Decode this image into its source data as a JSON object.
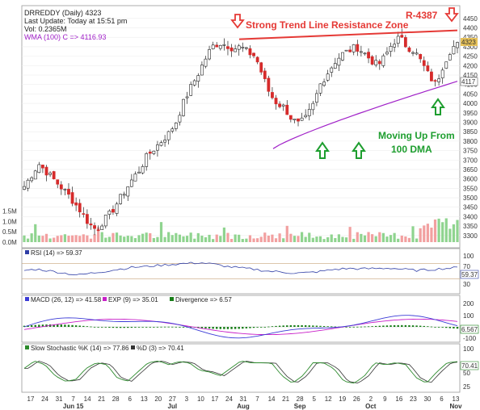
{
  "header": {
    "symbol_line": "DRREDDY (Daily) 4323",
    "update_line": "Last Update: Today at 15:51 pm",
    "vol_line": "Vol: 0.2365M",
    "wma_line": "WMA (100) C => 4116.93"
  },
  "annotations": {
    "resistance_title": "Strong Trend Line Resistance Zone",
    "resistance_level": "R-4387",
    "support_line1": "Moving Up From",
    "support_line2": "100 DMA"
  },
  "price_labels": {
    "last": "4323",
    "wma": "4117"
  },
  "panels": {
    "rsi": {
      "legend": "RSI (14) => 59.37",
      "value_tag": "59.37",
      "levels": [
        "100",
        "70",
        "30"
      ]
    },
    "macd": {
      "legend_macd": "MACD (26, 12) => 41.58",
      "legend_exp": "EXP (9) => 35.01",
      "legend_div": "Divergence => 6.57",
      "value_tag": "6.567",
      "levels": [
        "200",
        "100",
        "-100"
      ]
    },
    "stoch": {
      "legend_k": "Slow Stochastic %K (14) => 77.86",
      "legend_d": "%D (3) => 70.41",
      "value_tag": "70.41",
      "levels": [
        "100",
        "50",
        "25"
      ]
    }
  },
  "x_axis": {
    "ticks": [
      "17",
      "24",
      "31",
      "7",
      "14",
      "21",
      "28",
      "6",
      "13",
      "20",
      "27",
      "3",
      "10",
      "17",
      "24",
      "31",
      "7",
      "14",
      "21",
      "28",
      "5",
      "12",
      "19",
      "26",
      "2",
      "9",
      "16",
      "23",
      "30",
      "6",
      "13"
    ],
    "months": [
      "Jun 15",
      "Jul",
      "Aug",
      "Sep",
      "Oct",
      "Nov"
    ]
  },
  "colors": {
    "up": "#1e9e2f",
    "down": "#d62b2b",
    "wma": "#a020c8",
    "resistance": "#e53935",
    "macd": "#3b3bd6",
    "exp": "#c81fc8",
    "divergence": "#177e17",
    "rsi": "#2f3ea6",
    "stoch_k": "#2c8a2c",
    "stoch_d": "#333333",
    "volume": "#8fd48f"
  },
  "icons": {
    "down_arrows": "red-outline-down-arrow-icon",
    "up_arrows": "green-outline-up-arrow-icon"
  },
  "chart_data": {
    "type": "candlestick",
    "y_ticks": [
      3300,
      3350,
      3400,
      3450,
      3500,
      3550,
      3600,
      3650,
      3700,
      3750,
      3800,
      3850,
      3900,
      3950,
      4000,
      4050,
      4100,
      4150,
      4200,
      4250,
      4300,
      4350,
      4400,
      4450
    ],
    "ylim": [
      3265,
      4475
    ],
    "volume_ticks": [
      "0.0M",
      "0.5M",
      "1.0M",
      "1.5M"
    ],
    "volume_ylim": [
      0,
      1.8
    ],
    "resistance_line": {
      "from": [
        "Aug 6",
        4340
      ],
      "to": [
        "Nov 13",
        4387
      ]
    },
    "wma_start_value": 3760,
    "wma_end_value": 4117,
    "last_close": 4323,
    "ohlc_anchor_closes": [
      3560,
      3620,
      3680,
      3640,
      3600,
      3560,
      3520,
      3470,
      3420,
      3360,
      3330,
      3380,
      3420,
      3480,
      3540,
      3600,
      3650,
      3720,
      3760,
      3800,
      3840,
      3900,
      4000,
      4080,
      4150,
      4230,
      4300,
      4320,
      4310,
      4290,
      4300,
      4270,
      4250,
      4150,
      4050,
      4000,
      3980,
      3920,
      3890,
      3920,
      3990,
      4100,
      4160,
      4220,
      4260,
      4280,
      4300,
      4270,
      4230,
      4200,
      4250,
      4320,
      4350,
      4300,
      4280,
      4220,
      4150,
      4100,
      4200,
      4280,
      4323
    ],
    "stoch_k_anchor": [
      60,
      80,
      70,
      40,
      25,
      30,
      60,
      75,
      70,
      35,
      25,
      50,
      75,
      80,
      70,
      78,
      75,
      55,
      50,
      40,
      60,
      80,
      75,
      75,
      74,
      40,
      20,
      40,
      75,
      75,
      60,
      25,
      20,
      40,
      75,
      70,
      75,
      70,
      35,
      20,
      50,
      75,
      78
    ],
    "rsi_anchor": [
      52,
      55,
      50,
      45,
      40,
      45,
      50,
      55,
      60,
      62,
      65,
      68,
      70,
      72,
      68,
      62,
      58,
      55,
      50,
      48,
      45,
      46,
      50,
      55,
      57,
      56,
      57,
      58,
      55,
      52,
      54,
      57,
      59
    ]
  }
}
